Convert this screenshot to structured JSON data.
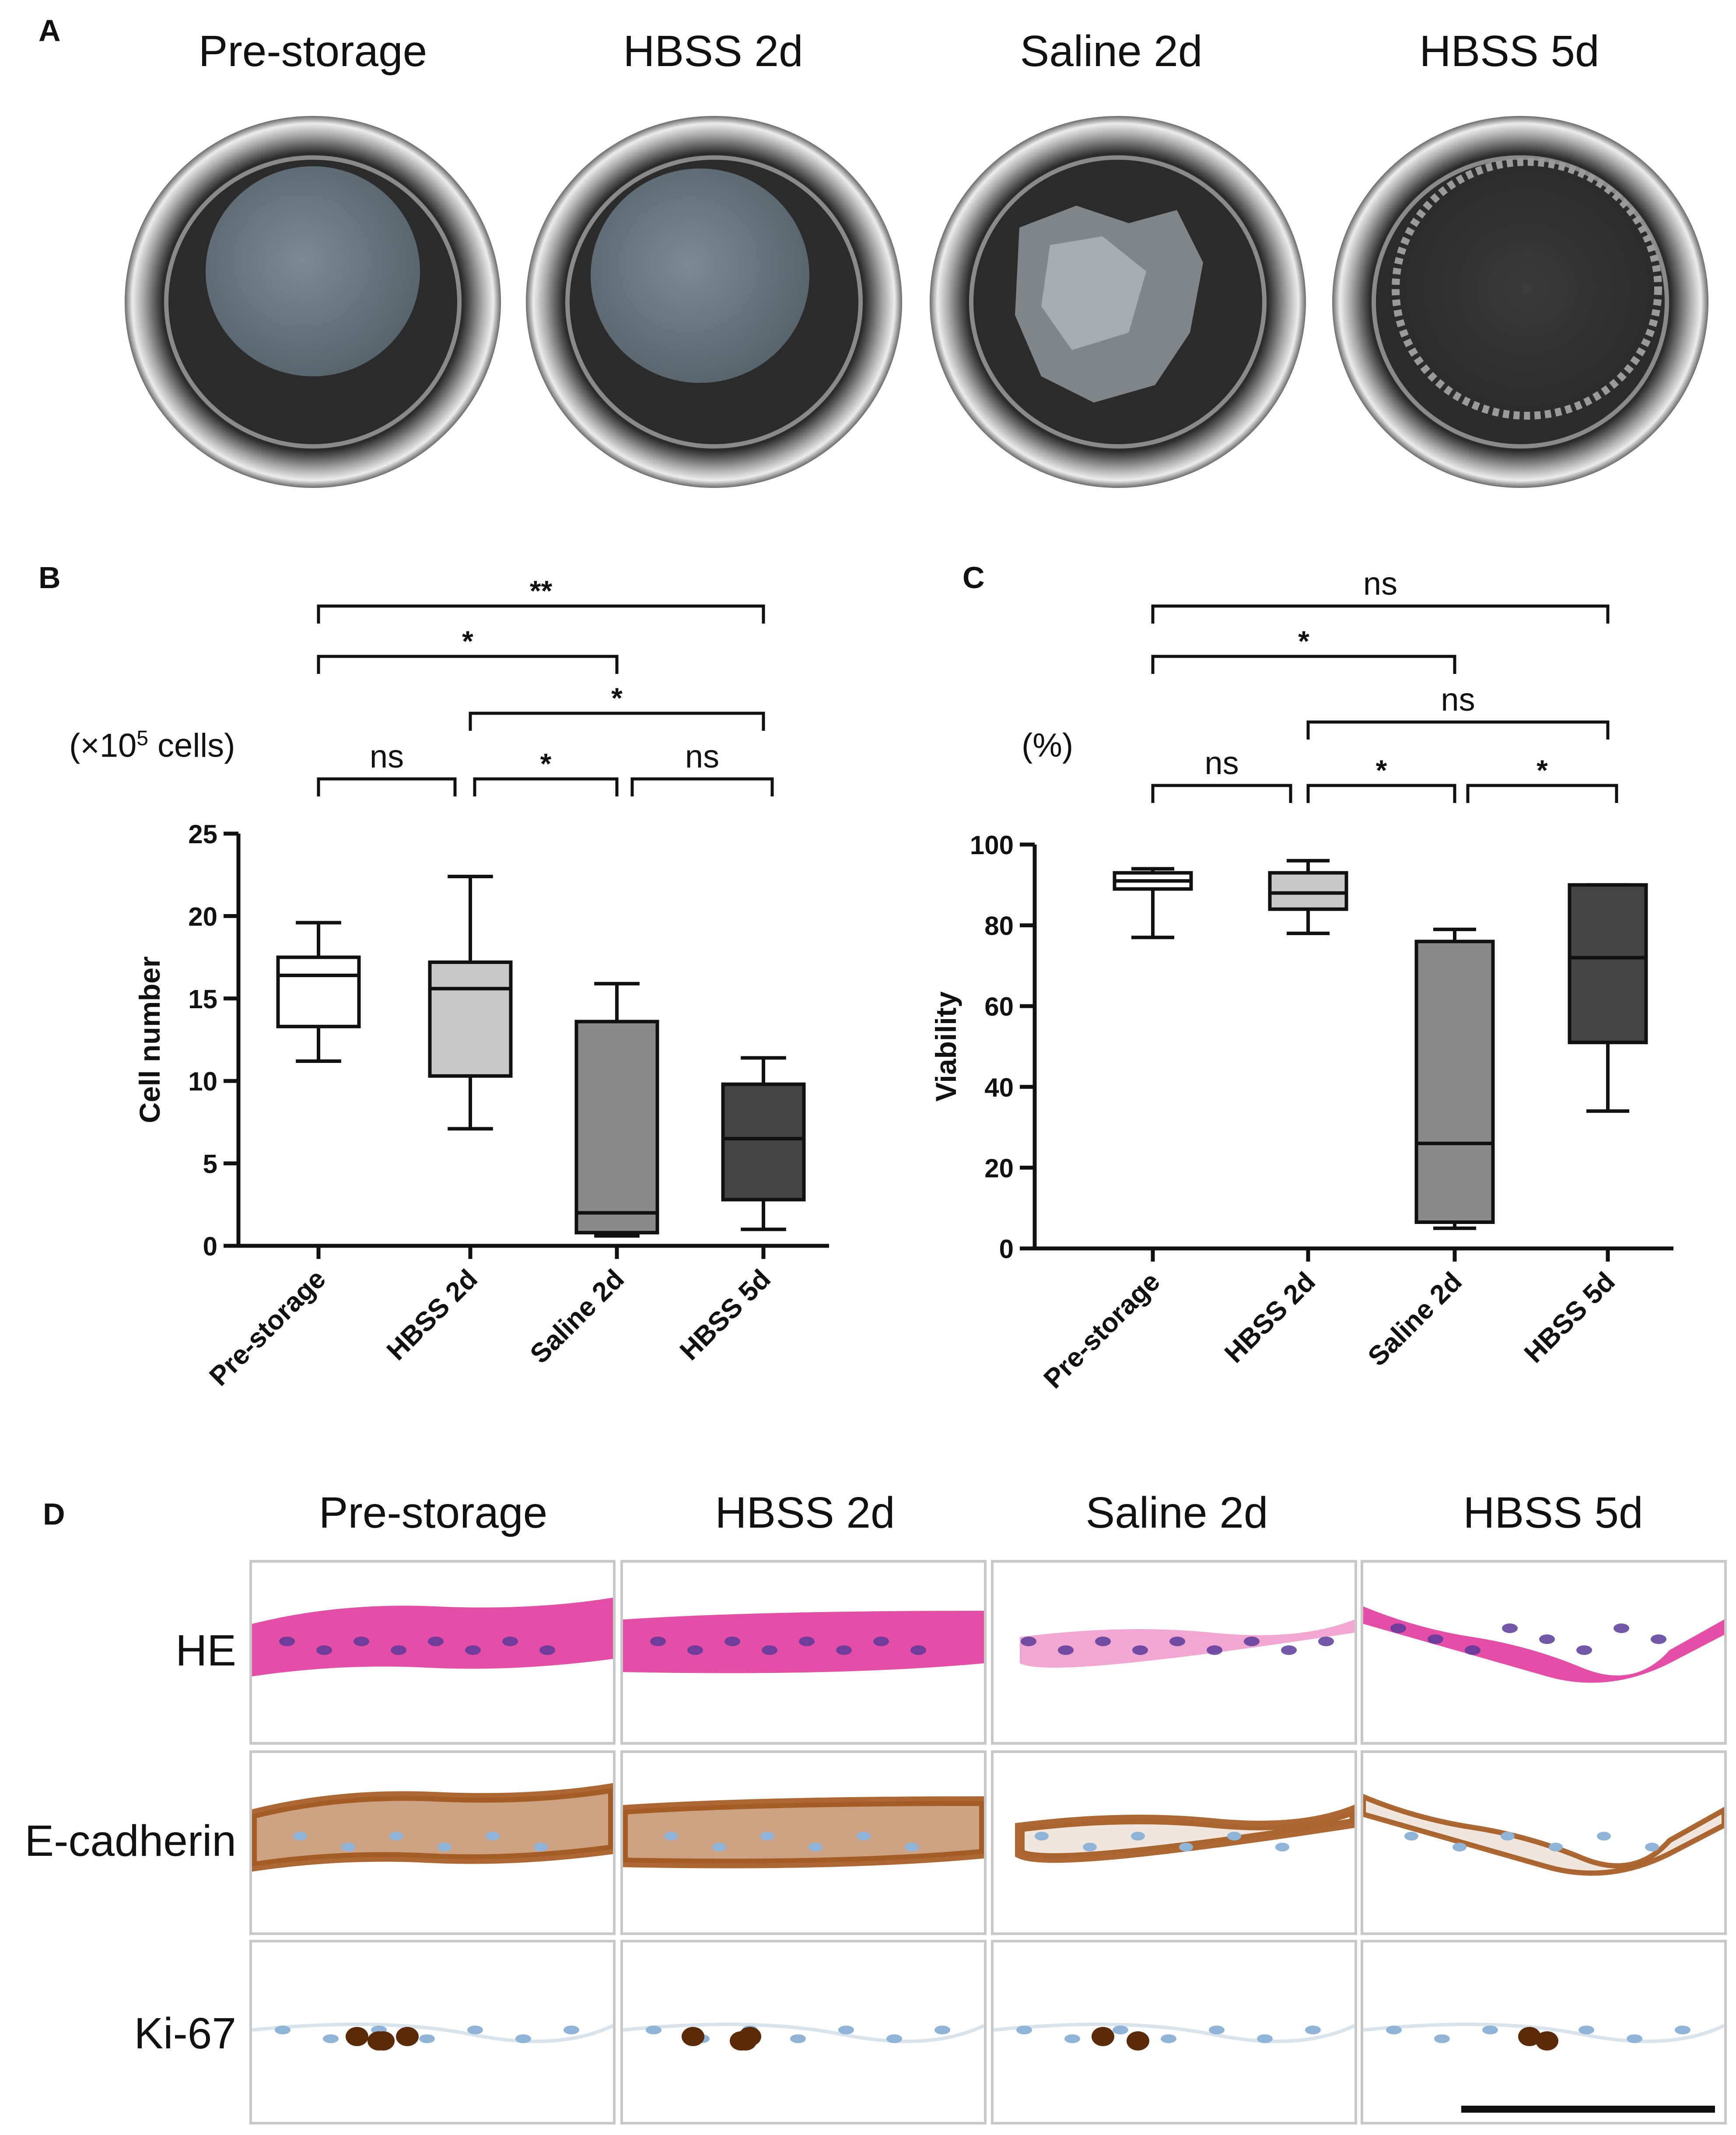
{
  "panel_a": {
    "letter": "A",
    "conditions": [
      "Pre-storage",
      "HBSS 2d",
      "Saline 2d",
      "HBSS 5d"
    ]
  },
  "panel_b": {
    "letter": "B",
    "unit_prefix": "(×10",
    "unit_exp": "5",
    "unit_suffix": " cells)",
    "significance": [
      {
        "label": "**",
        "from": 0,
        "to": 3
      },
      {
        "label": "*",
        "from": 0,
        "to": 2
      },
      {
        "label": "*",
        "from": 1,
        "to": 3
      },
      {
        "label": "ns",
        "from": 0,
        "to": 1
      },
      {
        "label": "*",
        "from": 1,
        "to": 2
      },
      {
        "label": "ns",
        "from": 2,
        "to": 3
      }
    ]
  },
  "panel_c": {
    "letter": "C",
    "unit": "(%)",
    "significance": [
      {
        "label": "ns",
        "from": 0,
        "to": 3
      },
      {
        "label": "*",
        "from": 0,
        "to": 2
      },
      {
        "label": "ns",
        "from": 1,
        "to": 3
      },
      {
        "label": "ns",
        "from": 0,
        "to": 1
      },
      {
        "label": "*",
        "from": 1,
        "to": 2
      },
      {
        "label": "*",
        "from": 2,
        "to": 3
      }
    ]
  },
  "panel_d": {
    "letter": "D",
    "conditions": [
      "Pre-storage",
      "HBSS 2d",
      "Saline 2d",
      "HBSS 5d"
    ],
    "rows": [
      "HE",
      "E-cadherin",
      "Ki-67"
    ]
  },
  "colors": {
    "box_fills": [
      "#ffffff",
      "#c8c8c8",
      "#8a8a8a",
      "#444444"
    ],
    "he_stain": "#e23b9c",
    "nucleus_purple": "#5a3a9a",
    "dab_brown": "#a3561c",
    "hematoxylin_blue": "#8fb4d8"
  },
  "chart_data": [
    {
      "type": "box",
      "ylabel": "Cell number",
      "categories": [
        "Pre-storage",
        "HBSS 2d",
        "Saline 2d",
        "HBSS 5d"
      ],
      "ylim": [
        0,
        25
      ],
      "yticks": [
        0,
        5,
        10,
        15,
        20,
        25
      ],
      "boxes": [
        {
          "min": 11.2,
          "q1": 13.3,
          "median": 16.4,
          "q3": 17.5,
          "max": 19.6
        },
        {
          "min": 7.1,
          "q1": 10.3,
          "median": 15.6,
          "q3": 17.2,
          "max": 22.4
        },
        {
          "min": 0.6,
          "q1": 0.8,
          "median": 2.0,
          "q3": 13.6,
          "max": 15.9
        },
        {
          "min": 1.0,
          "q1": 2.8,
          "median": 6.5,
          "q3": 9.8,
          "max": 11.4
        }
      ]
    },
    {
      "type": "box",
      "ylabel": "Viability",
      "categories": [
        "Pre-storage",
        "HBSS 2d",
        "Saline 2d",
        "HBSS 5d"
      ],
      "ylim": [
        0,
        100
      ],
      "yticks": [
        0,
        20,
        40,
        60,
        80,
        100
      ],
      "boxes": [
        {
          "min": 77,
          "q1": 89,
          "median": 91,
          "q3": 93,
          "max": 94
        },
        {
          "min": 78,
          "q1": 84,
          "median": 88,
          "q3": 93,
          "max": 96
        },
        {
          "min": 5,
          "q1": 6.5,
          "median": 26,
          "q3": 76,
          "max": 79
        },
        {
          "min": 34,
          "q1": 51,
          "median": 72,
          "q3": 90,
          "max": 90
        }
      ]
    }
  ]
}
